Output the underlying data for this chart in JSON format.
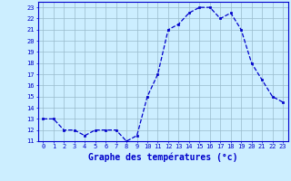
{
  "hours": [
    0,
    1,
    2,
    3,
    4,
    5,
    6,
    7,
    8,
    9,
    10,
    11,
    12,
    13,
    14,
    15,
    16,
    17,
    18,
    19,
    20,
    21,
    22,
    23
  ],
  "temps": [
    13,
    13,
    12,
    12,
    11.5,
    12,
    12,
    12,
    11,
    11.5,
    15,
    17,
    21,
    21.5,
    22.5,
    23,
    23,
    22,
    22.5,
    21,
    18,
    16.5,
    15,
    14.5
  ],
  "line_color": "#0000cc",
  "marker": "s",
  "marker_size": 1.8,
  "bg_color": "#cceeff",
  "grid_color": "#99bbcc",
  "xlabel": "Graphe des températures (°c)",
  "ylim": [
    11,
    23.5
  ],
  "xlim": [
    -0.5,
    23.5
  ],
  "yticks": [
    11,
    12,
    13,
    14,
    15,
    16,
    17,
    18,
    19,
    20,
    21,
    22,
    23
  ],
  "xticks": [
    0,
    1,
    2,
    3,
    4,
    5,
    6,
    7,
    8,
    9,
    10,
    11,
    12,
    13,
    14,
    15,
    16,
    17,
    18,
    19,
    20,
    21,
    22,
    23
  ],
  "tick_label_fontsize": 5.0,
  "xlabel_fontsize": 7.0,
  "axis_color": "#0000cc",
  "tick_color": "#0000cc",
  "linewidth": 0.9,
  "grid_linewidth": 0.5
}
